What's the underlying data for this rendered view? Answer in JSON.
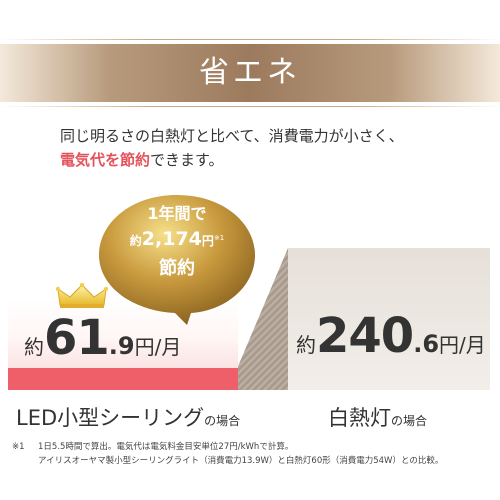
{
  "header": {
    "title": "省エネ"
  },
  "intro": {
    "line1": "同じ明るさの白熱灯と比べて、消費電力が小さく、",
    "emphasis": "電気代を節約",
    "line2_rest": "できます。"
  },
  "badge": {
    "line1": "1年間で",
    "prefix": "約",
    "value": "2,174",
    "unit": "円",
    "note_mark": "※1",
    "line3": "節約"
  },
  "led": {
    "prefix": "約",
    "integer": "61",
    "decimal": ".9",
    "unit": "円/月",
    "label": "LED小型シーリング",
    "label_suffix": "の場合"
  },
  "incandescent": {
    "prefix": "約",
    "integer": "240",
    "decimal": ".6",
    "unit": "円/月",
    "label": "白熱灯",
    "label_suffix": "の場合"
  },
  "footnote": {
    "mark": "※1",
    "line1": "1日5.5時間で算出。電気代は電気料金目安単位27円/kWhで計算。",
    "line2": "アイリスオーヤマ製小型シーリングライト（消費電力13.9W）と白熱灯60形（消費電力54W）との比較。"
  },
  "colors": {
    "accent": "#e4525a",
    "bar": "#ee5f6a",
    "gold": "#b58a3a",
    "header": "#9c7a5d"
  }
}
